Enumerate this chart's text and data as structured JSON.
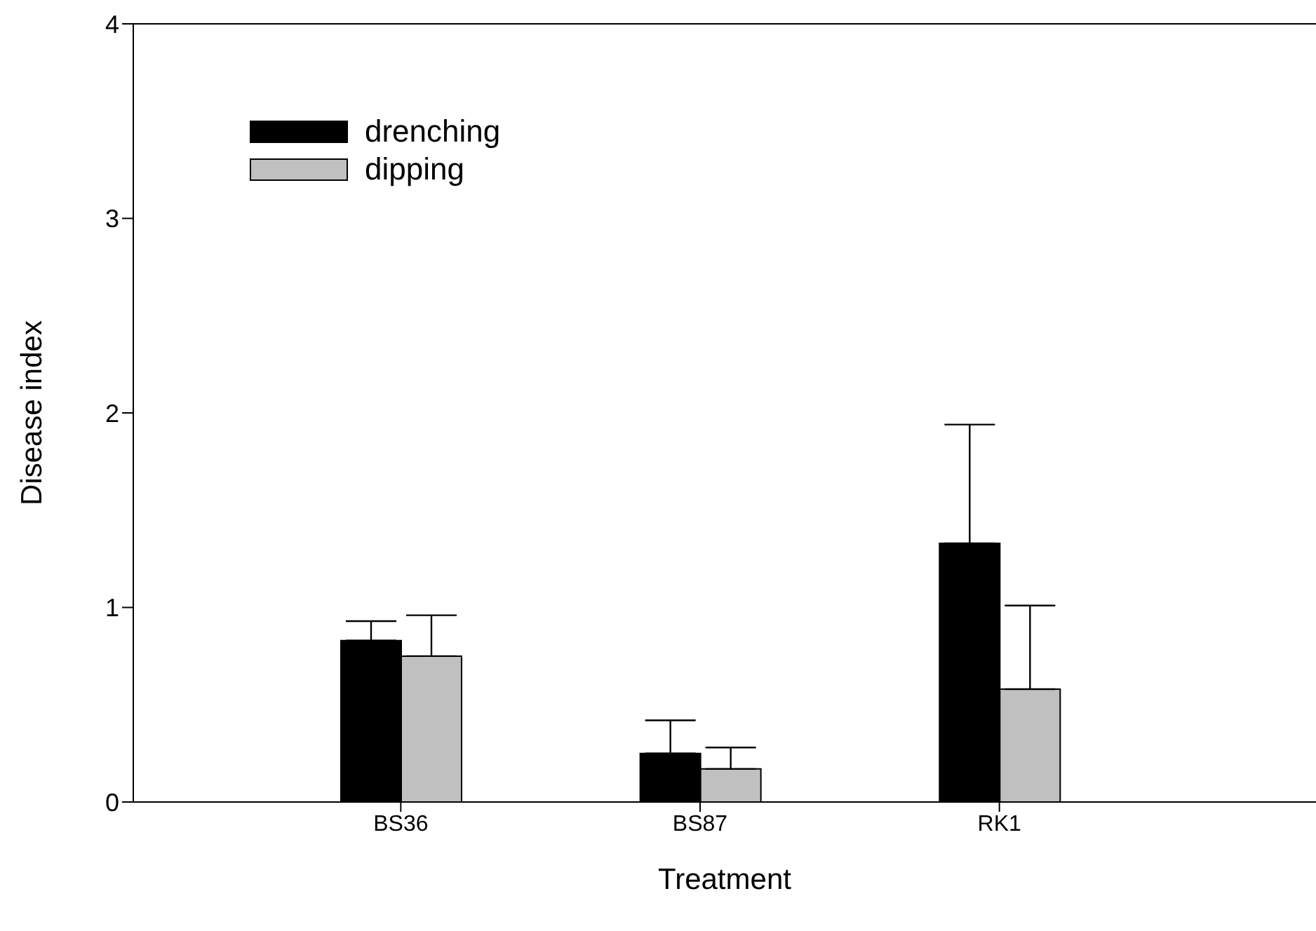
{
  "chart_data": {
    "type": "bar",
    "xlabel": "Treatment",
    "ylabel": "Disease index",
    "categories": [
      "BS36",
      "BS87",
      "RK1"
    ],
    "series": [
      {
        "name": "drenching",
        "color": "#000000",
        "values": [
          0.83,
          0.25,
          1.33
        ],
        "errors": [
          [
            0.83,
            0.93
          ],
          [
            0.25,
            0.42
          ],
          [
            1.33,
            1.94
          ]
        ]
      },
      {
        "name": "dipping",
        "color": "#c0c0c0",
        "values": [
          0.75,
          0.17,
          0.58
        ],
        "errors": [
          [
            0.75,
            0.96
          ],
          [
            0.17,
            0.28
          ],
          [
            0.58,
            1.01
          ]
        ]
      }
    ],
    "ylim": [
      0,
      4
    ],
    "yticks": [
      0,
      1,
      2,
      3,
      4
    ],
    "grid": false,
    "legend": "top left"
  }
}
